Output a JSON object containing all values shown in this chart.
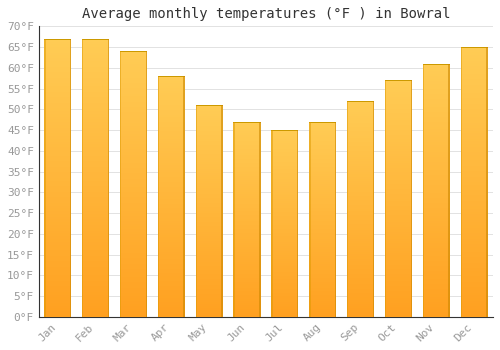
{
  "title": "Average monthly temperatures (°F ) in Bowral",
  "months": [
    "Jan",
    "Feb",
    "Mar",
    "Apr",
    "May",
    "Jun",
    "Jul",
    "Aug",
    "Sep",
    "Oct",
    "Nov",
    "Dec"
  ],
  "values": [
    67,
    67,
    64,
    58,
    51,
    47,
    45,
    47,
    52,
    57,
    61,
    65
  ],
  "bar_color_top": "#FFCC44",
  "bar_color_bottom": "#FFA020",
  "bar_edge_color": "#CC8800",
  "ylim": [
    0,
    70
  ],
  "yticks": [
    0,
    5,
    10,
    15,
    20,
    25,
    30,
    35,
    40,
    45,
    50,
    55,
    60,
    65,
    70
  ],
  "ytick_labels": [
    "0°F",
    "5°F",
    "10°F",
    "15°F",
    "20°F",
    "25°F",
    "30°F",
    "35°F",
    "40°F",
    "45°F",
    "50°F",
    "55°F",
    "60°F",
    "65°F",
    "70°F"
  ],
  "background_color": "#FFFFFF",
  "grid_color": "#DDDDDD",
  "title_fontsize": 10,
  "tick_fontsize": 8,
  "font_family": "monospace",
  "tick_color": "#999999",
  "spine_color": "#333333"
}
